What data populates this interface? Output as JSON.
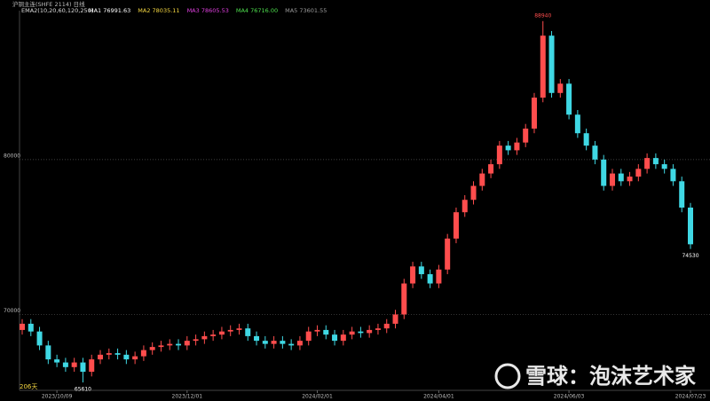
{
  "chart_data": {
    "type": "candlestick",
    "title": "沪铜主连(SHFE 2114)  日线",
    "indicator": "EMA2(10,20,60,120,250)",
    "ma_labels": [
      {
        "text": "MA1 76991.63",
        "color": "#ffffff"
      },
      {
        "text": "MA2 78035.11",
        "color": "#f5d742"
      },
      {
        "text": "MA3 78605.53",
        "color": "#e040e0"
      },
      {
        "text": "MA4 76716.00",
        "color": "#4ee04e"
      },
      {
        "text": "MA5 73601.55",
        "color": "#9a9a9a"
      }
    ],
    "categories": [
      null,
      null,
      null,
      null,
      "2023/10/09",
      null,
      null,
      null,
      null,
      null,
      null,
      null,
      null,
      null,
      null,
      null,
      null,
      null,
      null,
      "2023/12/01",
      null,
      null,
      null,
      null,
      null,
      null,
      null,
      null,
      null,
      null,
      null,
      null,
      null,
      null,
      "2024/02/01",
      null,
      null,
      null,
      null,
      null,
      null,
      null,
      null,
      null,
      null,
      null,
      null,
      null,
      "2024/04/01",
      null,
      null,
      null,
      null,
      null,
      null,
      null,
      null,
      null,
      null,
      null,
      null,
      null,
      null,
      "2024/06/03",
      null,
      null,
      null,
      null,
      null,
      null,
      null,
      null,
      null,
      null,
      null,
      null,
      null,
      "2024/07/23"
    ],
    "open": [
      69000,
      69400,
      68900,
      68000,
      67100,
      66900,
      66600,
      66900,
      66300,
      67100,
      67400,
      67500,
      67400,
      67100,
      67300,
      67700,
      67900,
      68000,
      68100,
      68000,
      68300,
      68400,
      68600,
      68700,
      68900,
      69000,
      69100,
      68600,
      68300,
      68100,
      68300,
      68100,
      68000,
      68300,
      68900,
      69000,
      68700,
      68300,
      68700,
      68900,
      68800,
      69000,
      69100,
      69400,
      70000,
      72000,
      73100,
      72600,
      72000,
      72900,
      74900,
      76600,
      77400,
      78300,
      79100,
      79700,
      80900,
      80600,
      81100,
      82000,
      84000,
      88000,
      84300,
      84900,
      82900,
      81700,
      80900,
      80000,
      78300,
      79100,
      78600,
      78900,
      79400,
      80100,
      79700,
      79400,
      78600,
      76900
    ],
    "high": [
      69700,
      69700,
      69200,
      68300,
      67400,
      67200,
      67200,
      67200,
      67400,
      67700,
      67800,
      67800,
      67700,
      67600,
      68000,
      68200,
      68300,
      68400,
      68400,
      68600,
      68700,
      68900,
      69000,
      69200,
      69300,
      69400,
      69400,
      68900,
      68600,
      68600,
      68600,
      68400,
      68600,
      69200,
      69300,
      69300,
      69000,
      69000,
      69200,
      69200,
      69300,
      69400,
      69700,
      70300,
      72300,
      73400,
      73400,
      72900,
      73200,
      75200,
      76900,
      77700,
      78600,
      79400,
      80000,
      81200,
      81200,
      81400,
      82300,
      84300,
      88940,
      88300,
      85200,
      85200,
      83200,
      82000,
      81200,
      80300,
      79400,
      79400,
      79200,
      79700,
      80400,
      80400,
      80000,
      79700,
      78900,
      77200
    ],
    "low": [
      68700,
      68600,
      67700,
      66800,
      66600,
      66300,
      66300,
      65610,
      66000,
      66800,
      67100,
      67100,
      66800,
      66800,
      67000,
      67400,
      67600,
      67700,
      67700,
      67700,
      68000,
      68100,
      68300,
      68400,
      68600,
      68700,
      68300,
      68000,
      67800,
      67800,
      67800,
      67700,
      67700,
      68000,
      68600,
      68400,
      68000,
      68000,
      68400,
      68500,
      68500,
      68700,
      68800,
      69100,
      69700,
      71700,
      72300,
      71700,
      71700,
      72600,
      74600,
      76300,
      77100,
      78000,
      78800,
      79400,
      80300,
      80300,
      80800,
      81700,
      83700,
      84000,
      84000,
      82600,
      81400,
      80600,
      79700,
      78000,
      78000,
      78300,
      78300,
      78600,
      79100,
      79400,
      79100,
      78300,
      76600,
      74230
    ],
    "close": [
      69400,
      68900,
      68000,
      67100,
      66900,
      66600,
      66900,
      66300,
      67100,
      67400,
      67500,
      67400,
      67100,
      67300,
      67700,
      67900,
      68000,
      68100,
      68000,
      68300,
      68400,
      68600,
      68700,
      68900,
      69000,
      69100,
      68600,
      68300,
      68100,
      68300,
      68100,
      68000,
      68300,
      68900,
      69000,
      68700,
      68300,
      68700,
      68900,
      68800,
      69000,
      69100,
      69400,
      70000,
      72000,
      73100,
      72600,
      72000,
      72900,
      74900,
      76600,
      77400,
      78300,
      79100,
      79700,
      80900,
      80600,
      81100,
      82000,
      84000,
      88000,
      84300,
      84900,
      82900,
      81700,
      80900,
      80000,
      78300,
      79100,
      78600,
      78900,
      79400,
      80100,
      79700,
      79400,
      78600,
      76900,
      74530
    ],
    "up_color": "#ff4d4d",
    "down_color": "#3fd8e4",
    "ylim": [
      65100,
      89500
    ],
    "yticks": [
      70000,
      80000
    ],
    "grid": true,
    "annotations": [
      {
        "text": "88940",
        "index": 60,
        "at": "high",
        "color": "#ff4d4d"
      },
      {
        "text": "74530",
        "index": 77,
        "at": "low",
        "color": "#ffffff"
      },
      {
        "text": "65610",
        "index": 7,
        "at": "low",
        "color": "#ffffff"
      }
    ],
    "footer_note": "206天",
    "watermark": "雪球：泡沫艺术家"
  }
}
